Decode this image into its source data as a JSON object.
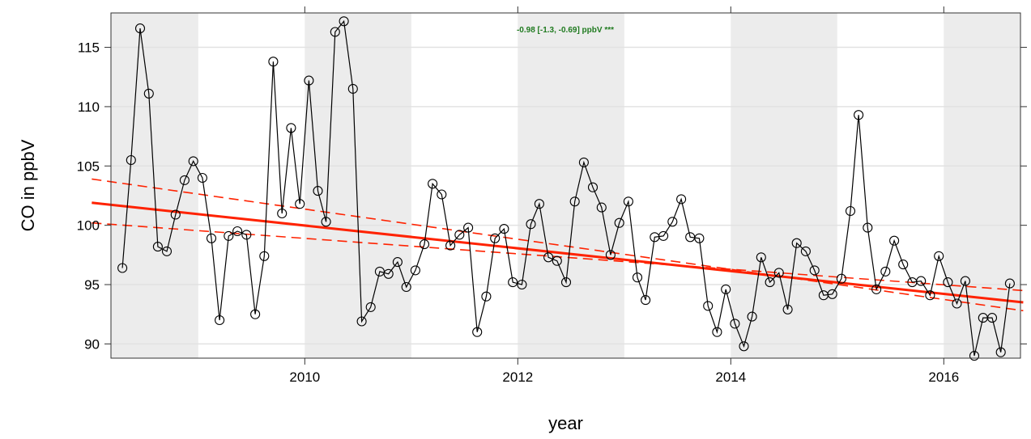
{
  "chart_data": {
    "type": "line",
    "title": "",
    "xlabel": "year",
    "ylabel": "CO in ppbV",
    "xlim": [
      2008.18,
      2016.72
    ],
    "ylim": [
      88.8,
      117.9
    ],
    "x_ticks": [
      {
        "value": 2010,
        "label": "2010"
      },
      {
        "value": 2012,
        "label": "2012"
      },
      {
        "value": 2014,
        "label": "2014"
      },
      {
        "value": 2016,
        "label": "2016"
      }
    ],
    "y_ticks": [
      {
        "value": 90,
        "label": "90"
      },
      {
        "value": 95,
        "label": "95"
      },
      {
        "value": 100,
        "label": "100"
      },
      {
        "value": 105,
        "label": "105"
      },
      {
        "value": 110,
        "label": "110"
      },
      {
        "value": 115,
        "label": "115"
      }
    ],
    "shaded_years": [
      [
        2008,
        2009
      ],
      [
        2010,
        2011
      ],
      [
        2012,
        2013
      ],
      [
        2014,
        2015
      ],
      [
        2016,
        2017
      ]
    ],
    "grid": true,
    "series": [
      {
        "x": [
          "2008-04-15",
          "2008-05-15",
          "2008-06-15",
          "2008-07-15",
          "2008-08-15",
          "2008-09-15",
          "2008-10-15",
          "2008-11-15",
          "2008-12-15",
          "2009-01-15",
          "2009-02-15",
          "2009-03-15",
          "2009-04-15",
          "2009-05-15",
          "2009-06-15",
          "2009-07-15",
          "2009-08-15",
          "2009-09-15",
          "2009-10-15",
          "2009-11-15",
          "2009-12-15",
          "2010-01-15",
          "2010-02-15",
          "2010-03-15",
          "2010-04-15",
          "2010-05-15",
          "2010-06-15",
          "2010-07-15",
          "2010-08-15",
          "2010-09-15",
          "2010-10-15",
          "2010-11-15",
          "2010-12-15",
          "2011-01-15",
          "2011-02-15",
          "2011-03-15",
          "2011-04-15",
          "2011-05-15",
          "2011-06-15",
          "2011-07-15",
          "2011-08-15",
          "2011-09-15",
          "2011-10-15",
          "2011-11-15",
          "2011-12-15",
          "2012-01-15",
          "2012-02-15",
          "2012-03-15",
          "2012-04-15",
          "2012-05-15",
          "2012-06-15",
          "2012-07-15",
          "2012-08-15",
          "2012-09-15",
          "2012-10-15",
          "2012-11-15",
          "2012-12-15",
          "2013-01-15",
          "2013-02-15",
          "2013-03-15",
          "2013-04-15",
          "2013-05-15",
          "2013-06-15",
          "2013-07-15",
          "2013-08-15",
          "2013-09-15",
          "2013-10-15",
          "2013-11-15",
          "2013-12-15",
          "2014-01-15",
          "2014-02-15",
          "2014-03-15",
          "2014-04-15",
          "2014-05-15",
          "2014-06-15",
          "2014-07-15",
          "2014-08-15",
          "2014-09-15",
          "2014-10-15",
          "2014-11-15",
          "2014-12-15",
          "2015-01-15",
          "2015-02-15",
          "2015-03-15",
          "2015-04-15",
          "2015-05-15",
          "2015-06-15",
          "2015-07-15",
          "2015-08-15",
          "2015-09-15",
          "2015-10-15",
          "2015-11-15",
          "2015-12-15",
          "2016-01-15",
          "2016-02-15",
          "2016-03-15",
          "2016-04-15",
          "2016-05-15",
          "2016-06-15",
          "2016-07-15",
          "2016-08-15"
        ],
        "values": [
          96.4,
          105.5,
          116.6,
          111.1,
          98.2,
          97.8,
          100.9,
          103.8,
          105.4,
          104.0,
          98.9,
          92.0,
          99.1,
          99.5,
          99.2,
          92.5,
          97.4,
          113.8,
          101.0,
          108.2,
          101.8,
          112.2,
          102.9,
          100.3,
          116.3,
          117.2,
          111.5,
          91.9,
          93.1,
          96.1,
          95.9,
          96.9,
          94.8,
          96.2,
          98.4,
          103.5,
          102.6,
          98.3,
          99.2,
          99.8,
          91.0,
          94.0,
          98.9,
          99.7,
          95.2,
          95.0,
          100.1,
          101.8,
          97.3,
          97.0,
          95.2,
          102.0,
          105.3,
          103.2,
          101.5,
          97.5,
          100.2,
          102.0,
          95.6,
          93.7,
          99.0,
          99.1,
          100.3,
          102.2,
          99.0,
          98.9,
          93.2,
          91.0,
          94.6,
          91.7,
          89.8,
          92.3,
          97.3,
          95.2,
          96.0,
          92.9,
          98.5,
          97.8,
          96.2,
          94.1,
          94.2,
          95.5,
          101.2,
          109.3,
          99.8,
          94.6,
          96.1,
          98.7,
          96.7,
          95.2,
          95.3,
          94.1,
          97.4,
          95.2,
          93.4,
          95.3,
          89.0,
          92.2,
          92.2,
          89.3,
          95.1
        ]
      }
    ],
    "trend": {
      "start": [
        "2008-01-01",
        101.9
      ],
      "end": [
        "2016-09-30",
        93.5
      ],
      "upper_start": [
        "2008-01-01",
        103.9
      ],
      "upper_end": [
        "2016-09-30",
        92.8
      ],
      "lower_start": [
        "2008-01-01",
        100.2
      ],
      "lower_end": [
        "2016-09-30",
        94.5
      ]
    },
    "annotation": "-0.98 [-1.3, -0.69] ppbV ***",
    "colors": {
      "line": "#000000",
      "trend": "#ff2200",
      "annotation": "#1f7a1f",
      "shade": "#ececec",
      "grid": "#e2e2e2"
    }
  }
}
